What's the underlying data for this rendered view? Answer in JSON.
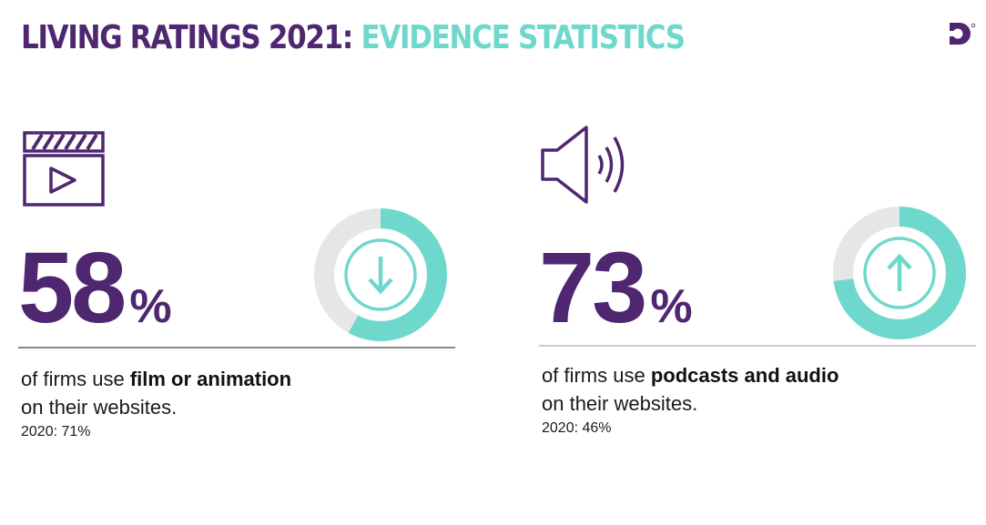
{
  "header": {
    "title_part1": "LIVING RATINGS 2021:",
    "title_part2": "EVIDENCE STATISTICS",
    "logo_icon": "brand-logo-icon"
  },
  "colors": {
    "purple": "#4f2670",
    "teal": "#6fd8cc",
    "grey": "#e6e6e6"
  },
  "stats": [
    {
      "icon": "video-clapperboard-icon",
      "value": "58",
      "percent_sign": "%",
      "fraction": 0.58,
      "trend_icon": "arrow-down-icon",
      "text_prefix": "of firms use",
      "text_bold": "film or animation",
      "text_suffix": "on their websites.",
      "previous": "2020: 71%"
    },
    {
      "icon": "speaker-audio-icon",
      "value": "73",
      "percent_sign": "%",
      "fraction": 0.73,
      "trend_icon": "arrow-up-icon",
      "text_prefix": "of firms use",
      "text_bold": "podcasts and audio",
      "text_suffix": "on their websites.",
      "previous": "2020: 46%"
    }
  ]
}
